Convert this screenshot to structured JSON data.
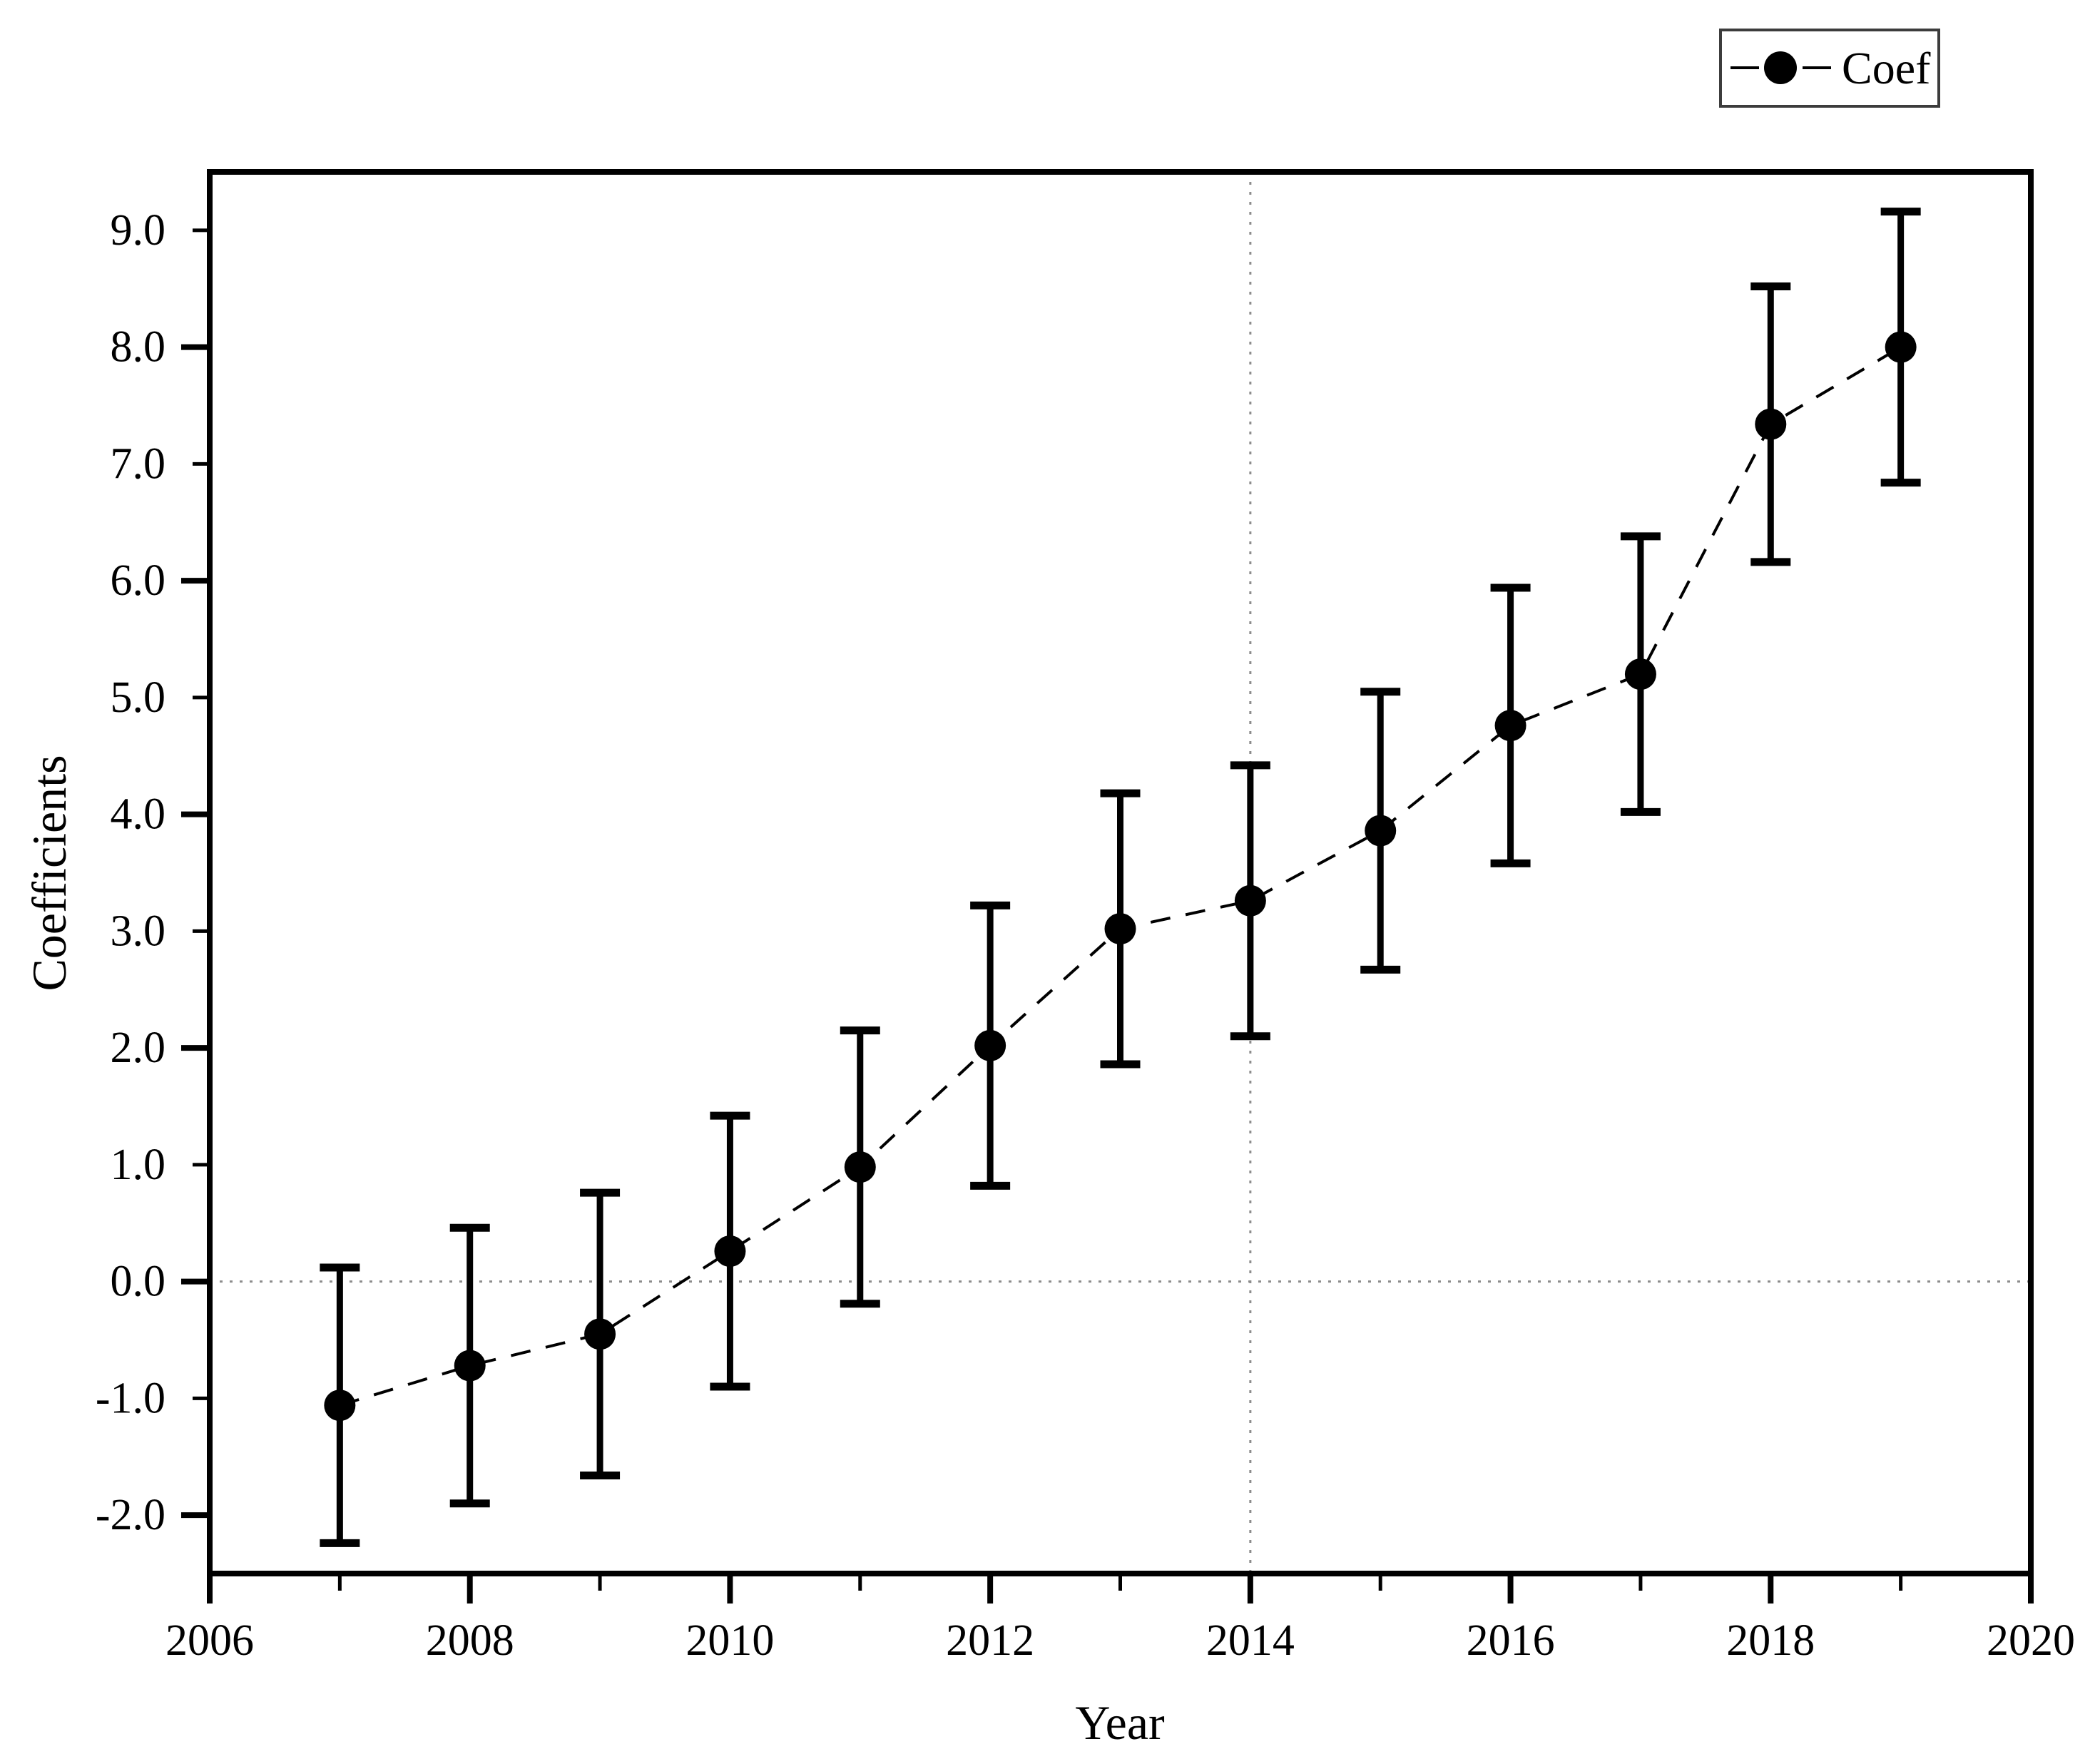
{
  "figure": {
    "xlabel": "Year",
    "ylabel": "Coefficients",
    "legend_label": "Coef"
  },
  "chart_data": {
    "type": "line",
    "subtype": "errorbar-coefficient-plot",
    "title": "",
    "xlabel": "Year",
    "ylabel": "Coefficients",
    "legend": {
      "entries": [
        "Coef"
      ],
      "position": "top-right-outside",
      "marker": "filled-circle-on-dashed-line"
    },
    "xlim": [
      2006,
      2020
    ],
    "ylim": [
      -2.5,
      9.5
    ],
    "grid": "off",
    "x_major_ticks": [
      2006,
      2008,
      2010,
      2012,
      2014,
      2016,
      2018,
      2020
    ],
    "x_minor_ticks": [
      2007,
      2009,
      2011,
      2013,
      2015,
      2017,
      2019
    ],
    "x_tick_labels": [
      "2006",
      "2008",
      "2010",
      "2012",
      "2014",
      "2016",
      "2018",
      "2020"
    ],
    "y_tick_values": [
      -2,
      -1,
      0,
      1,
      2,
      3,
      4,
      5,
      6,
      7,
      8,
      9
    ],
    "y_tick_labels": [
      "-2.0",
      "-1.0",
      "0.0",
      "1.0",
      "2.0",
      "3.0",
      "4.0",
      "5.0",
      "6.0",
      "7.0",
      "8.0",
      "9.0"
    ],
    "y_major_tick_values": [
      -2,
      0,
      2,
      4,
      6,
      8
    ],
    "reference_lines": {
      "horizontal_y": 0.0,
      "vertical_x": 2014,
      "style": "dotted",
      "color": "#8c8c8c"
    },
    "series": [
      {
        "name": "Coef",
        "x": [
          2007,
          2008,
          2009,
          2010,
          2011,
          2012,
          2013,
          2014,
          2015,
          2016,
          2017,
          2018,
          2019
        ],
        "y": [
          -1.06,
          -0.72,
          -0.45,
          0.26,
          0.98,
          2.02,
          3.02,
          3.26,
          3.86,
          4.76,
          5.2,
          7.34,
          8.0
        ],
        "ci_low": [
          -2.24,
          -1.9,
          -1.66,
          -0.9,
          -0.19,
          0.82,
          1.86,
          2.1,
          2.67,
          3.58,
          4.02,
          6.16,
          6.84
        ],
        "ci_high": [
          0.12,
          0.46,
          0.76,
          1.42,
          2.15,
          3.22,
          4.18,
          4.42,
          5.05,
          5.94,
          6.38,
          8.52,
          9.16
        ],
        "line_style": "dashed",
        "marker": "filled-circle",
        "color": "#000000"
      }
    ],
    "colors": {
      "series": "#000000",
      "reference": "#8c8c8c",
      "frame": "#000000",
      "background": "#ffffff"
    }
  }
}
